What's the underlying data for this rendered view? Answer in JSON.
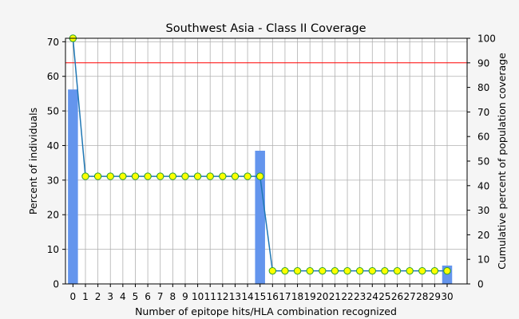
{
  "chart_data": {
    "type": "bar",
    "title": "Southwest Asia - Class II Coverage",
    "xlabel": "Number of epitope hits/HLA combination recognized",
    "ylabel": "Percent of individuals",
    "y2label": "Cumulative percent of population coverage",
    "categories": [
      0,
      1,
      2,
      3,
      4,
      5,
      6,
      7,
      8,
      9,
      10,
      11,
      12,
      13,
      14,
      15,
      16,
      17,
      18,
      19,
      20,
      21,
      22,
      23,
      24,
      25,
      26,
      27,
      28,
      29,
      30
    ],
    "xlim": [
      -0.6,
      31.6
    ],
    "ylim": [
      0,
      71
    ],
    "y2lim": [
      0,
      100
    ],
    "yticks": [
      0,
      10,
      20,
      30,
      40,
      50,
      60,
      70
    ],
    "y2ticks": [
      0,
      10,
      20,
      30,
      40,
      50,
      60,
      70,
      80,
      90,
      100
    ],
    "grid": true,
    "series": [
      {
        "name": "Percent of individuals",
        "type": "bar",
        "axis": "left",
        "values": [
          56.2,
          0,
          0,
          0,
          0,
          0,
          0,
          0,
          0,
          0,
          0,
          0,
          0,
          0,
          0,
          38.5,
          0,
          0,
          0,
          0,
          0,
          0,
          0,
          0,
          0,
          0,
          0,
          0,
          0,
          0,
          5.3
        ]
      },
      {
        "name": "Cumulative percent of population coverage",
        "type": "line",
        "axis": "right",
        "values": [
          100,
          43.8,
          43.8,
          43.8,
          43.8,
          43.8,
          43.8,
          43.8,
          43.8,
          43.8,
          43.8,
          43.8,
          43.8,
          43.8,
          43.8,
          43.8,
          5.3,
          5.3,
          5.3,
          5.3,
          5.3,
          5.3,
          5.3,
          5.3,
          5.3,
          5.3,
          5.3,
          5.3,
          5.3,
          5.3,
          5.3
        ]
      }
    ],
    "reference_line": {
      "axis": "right",
      "value": 90
    },
    "colors": {
      "bar": "#6495ed",
      "line": "#1f77b4",
      "marker_fill": "#ffff00",
      "marker_edge": "#2ca02c",
      "reference": "#ff0000",
      "grid": "#b0b0b0"
    }
  }
}
